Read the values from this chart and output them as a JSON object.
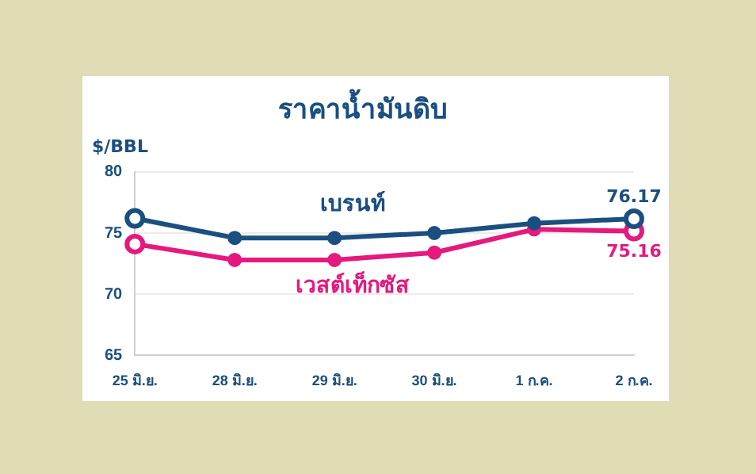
{
  "chart_data": {
    "type": "line",
    "title": "ราคาน้ำมันดิบ",
    "ylabel": "$/BBL",
    "categories": [
      "25 มิ.ย.",
      "28 มิ.ย.",
      "29 มิ.ย.",
      "30 มิ.ย.",
      "1 ก.ค.",
      "2 ก.ค."
    ],
    "series": [
      {
        "name": "เบรนท์",
        "color": "#1b4f80",
        "values": [
          76.2,
          74.6,
          74.6,
          75.0,
          75.8,
          76.17
        ],
        "value_labels": [
          null,
          null,
          null,
          null,
          null,
          "76.17"
        ]
      },
      {
        "name": "เวสต์เท็กซัส",
        "color": "#e5197e",
        "values": [
          74.1,
          72.8,
          72.8,
          73.4,
          75.3,
          75.16
        ],
        "value_labels": [
          null,
          null,
          null,
          null,
          null,
          "75.16"
        ]
      }
    ],
    "ylim": [
      65,
      80
    ],
    "yticks": [
      65,
      70,
      75,
      80
    ],
    "grid": "y",
    "legend": false,
    "marker": "circle",
    "line_style": "solid"
  }
}
